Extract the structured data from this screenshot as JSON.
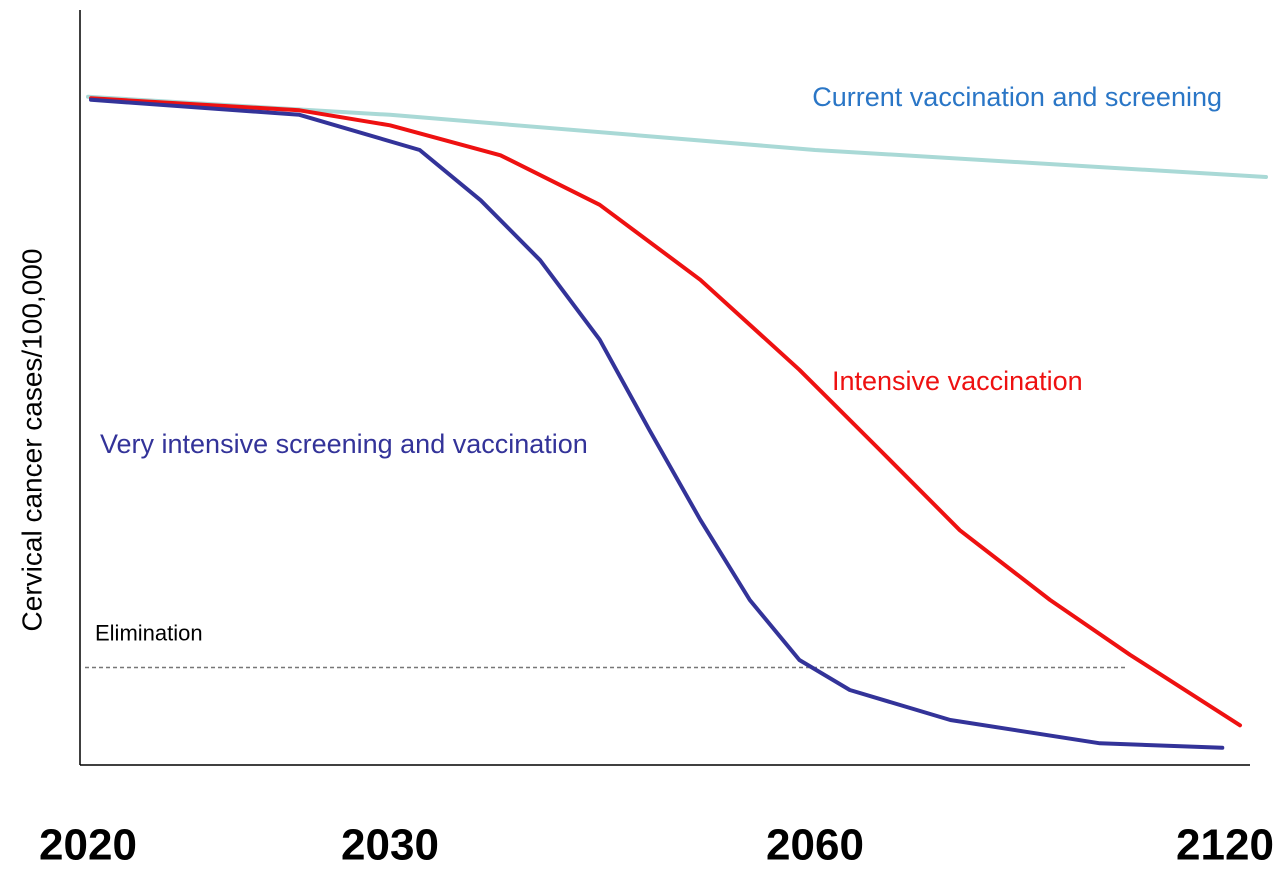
{
  "chart_data": {
    "type": "line",
    "y_label": "Cervical cancer cases/100,000",
    "xlim": [
      2020,
      2126
    ],
    "ylim": [
      0,
      100
    ],
    "xticks": [
      2020,
      2030,
      2060,
      2120
    ],
    "series": [
      {
        "name": "Current vaccination and screening",
        "color": "#a9d9d6",
        "label_color": "#2a76c6",
        "x": [
          2020,
          2030,
          2060,
          2126
        ],
        "values": [
          89.1,
          86.7,
          82,
          78.4
        ]
      },
      {
        "name": "Intensive vaccination",
        "color": "#ee1111",
        "label_color": "#ee1111",
        "x": [
          2020.1,
          2027,
          2030,
          2037.8,
          2044.8,
          2051.9,
          2058.9,
          2069.5,
          2081.2,
          2094.4,
          2106.1,
          2122.2
        ],
        "values": [
          88.9,
          87.3,
          85.3,
          81.3,
          74.7,
          64.7,
          52.7,
          42,
          31.3,
          22,
          14.7,
          5.3
        ]
      },
      {
        "name": "Very intensive screening and vaccination",
        "color": "#333399",
        "label_color": "#333399",
        "x": [
          2020.1,
          2027,
          2032.1,
          2036.4,
          2040.6,
          2044.8,
          2048.3,
          2051.9,
          2055.4,
          2058.9,
          2065.1,
          2079.8,
          2101.7,
          2119.6
        ],
        "values": [
          88.7,
          86.7,
          82,
          75.3,
          67.3,
          56.7,
          44.7,
          32.7,
          22,
          14,
          10,
          6,
          2.9,
          2.3
        ]
      }
    ],
    "elimination": {
      "label": "Elimination",
      "value": 13
    }
  }
}
